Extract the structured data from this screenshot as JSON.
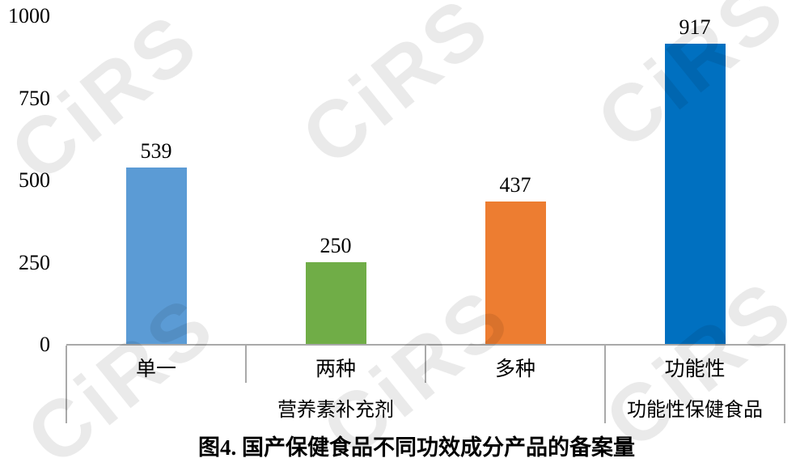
{
  "watermark": {
    "text": "CiRS"
  },
  "chart_data": {
    "type": "bar",
    "title": "图4. 国产保健食品不同功效成分产品的备案量",
    "categories": [
      "单一",
      "两种",
      "多种",
      "功能性"
    ],
    "values": [
      539,
      250,
      437,
      917
    ],
    "bar_colors": [
      "#5B9BD5",
      "#70AD47",
      "#ED7D31",
      "#0070C0"
    ],
    "groups": [
      {
        "label": "营养素补充剂",
        "start": 0,
        "end": 3
      },
      {
        "label": "功能性保健食品",
        "start": 3,
        "end": 4
      }
    ],
    "y_ticks": [
      0,
      250,
      500,
      750,
      1000
    ],
    "ylim": [
      0,
      1000
    ],
    "grid": false,
    "data_labels": true,
    "legend": "none",
    "axis_color": "#A9A9A9",
    "xlabel": "",
    "ylabel": ""
  }
}
